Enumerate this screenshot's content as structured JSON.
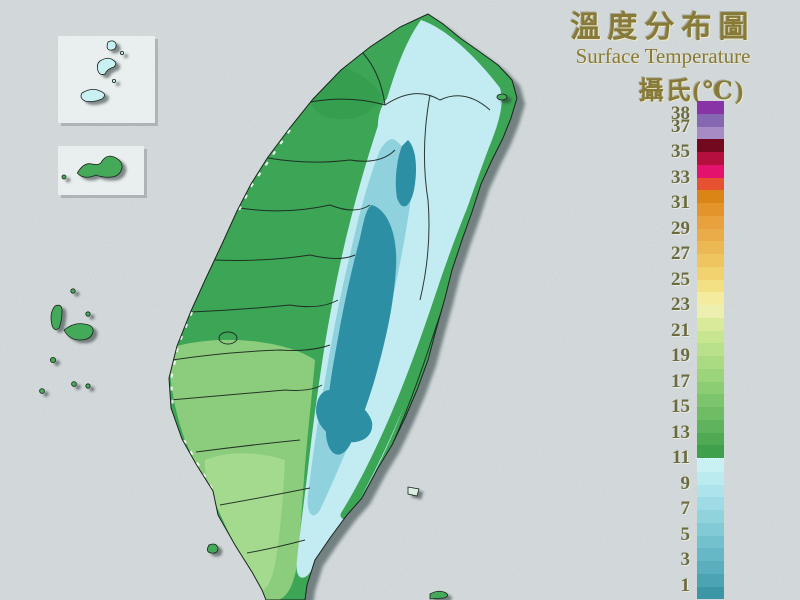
{
  "header": {
    "title_zh": "溫度分布圖",
    "title_en": "Surface Temperature",
    "unit": "攝氏(℃)"
  },
  "legend": {
    "top_value": 39,
    "degrees_per_segment": 1,
    "dotted_boundary_value": 11,
    "labels": [
      {
        "value": "38"
      },
      {
        "value": "37"
      },
      {
        "value": "35"
      },
      {
        "value": "33"
      },
      {
        "value": "31"
      },
      {
        "value": "29"
      },
      {
        "value": "27"
      },
      {
        "value": "25"
      },
      {
        "value": "23"
      },
      {
        "value": "21"
      },
      {
        "value": "19"
      },
      {
        "value": "17"
      },
      {
        "value": "15"
      },
      {
        "value": "13"
      },
      {
        "value": "11"
      },
      {
        "value": "9"
      },
      {
        "value": "7"
      },
      {
        "value": "5"
      },
      {
        "value": "3"
      },
      {
        "value": "1"
      }
    ],
    "segment_colors_top_to_bottom": [
      "#8833A6",
      "#8668B2",
      "#A78BC4",
      "#73091F",
      "#B50F3E",
      "#E3126D",
      "#E65231",
      "#DC8517",
      "#E3952C",
      "#E8A13C",
      "#EAAC49",
      "#ECB854",
      "#EFC560",
      "#F1D26E",
      "#F4E084",
      "#F5EB9E",
      "#EDEFB0",
      "#D9EA9B",
      "#C8E590",
      "#B9E08A",
      "#AADA82",
      "#9BD47B",
      "#8CCD73",
      "#7DC56C",
      "#6EBC64",
      "#5FB35C",
      "#50AA54",
      "#3FA04B",
      "#C9F1F4",
      "#BBEBEF",
      "#ADE3EA",
      "#9EDBE4",
      "#90D3DD",
      "#82CAD6",
      "#74C1CE",
      "#67B8C6",
      "#5AAEBD",
      "#4CA3B2",
      "#3D96A6"
    ]
  },
  "map": {
    "regions": [
      {
        "name": "taiwan-main-island"
      },
      {
        "name": "matsu-inset"
      },
      {
        "name": "kinmen-inset"
      },
      {
        "name": "penghu-islands"
      },
      {
        "name": "turtle-island"
      },
      {
        "name": "green-island"
      },
      {
        "name": "orchid-island"
      },
      {
        "name": "lamay-island"
      }
    ],
    "colors": {
      "sea_background": "#d9dfe0",
      "lowland_green": "#3da556",
      "plain_light_green": "#8ccd7d",
      "plain_lighter_green": "#a3da8e",
      "mountain_light_cyan": "#c2ecf2",
      "mountain_mid_cyan": "#8fd2de",
      "mountain_dark_teal": "#2d8fa4",
      "county_boundary": "#1b241e"
    }
  }
}
